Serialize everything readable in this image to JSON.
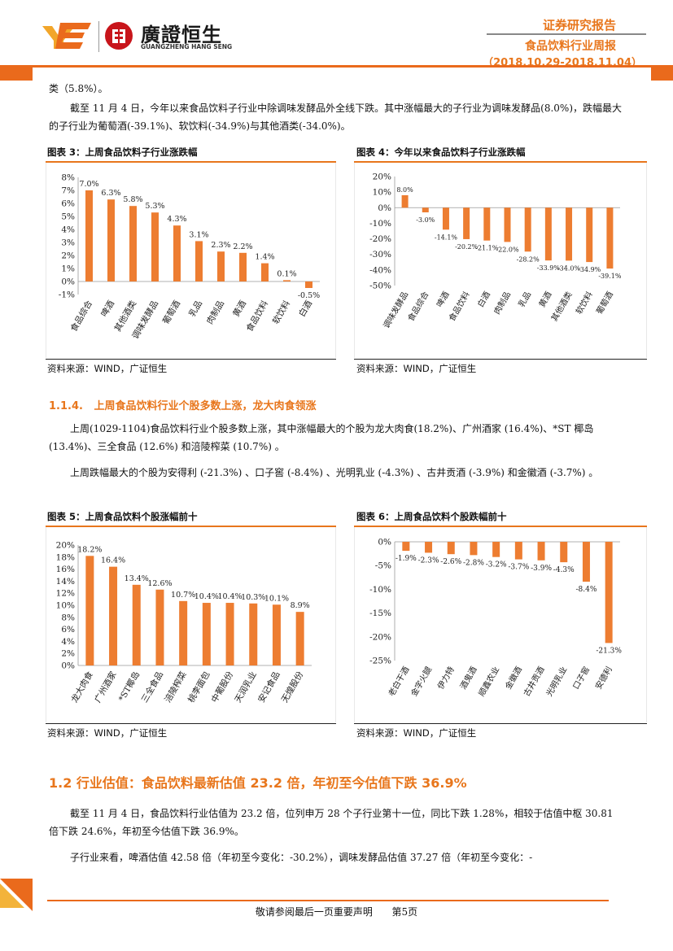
{
  "header": {
    "brand_cn": "廣證恒生",
    "brand_en": "GUANGZHENG HANG SENG",
    "report_type": "证券研究报告",
    "report_name": "食品饮料行业周报",
    "date_range": "（2018.10.29-2018.11.04）"
  },
  "body": {
    "p0": "类（5.8%）。",
    "p1": "截至 11 月 4 日，今年以来食品饮料子行业中除调味发酵品外全线下跌。其中涨幅最大的子行业为调味发酵品(8.0%)，跌幅最大的子行业为葡萄酒(-39.1%)、软饮料(-34.9%)与其他酒类(-34.0%)。",
    "section_114": "1.1.4.   上周食品饮料行业个股多数上涨，龙大肉食领涨",
    "p2": "上周(1029-1104)食品饮料行业个股多数上涨，其中涨幅最大的个股为龙大肉食(18.2%)、广州酒家 (16.4%)、*ST 椰岛(13.4%)、三全食品 (12.6%) 和涪陵榨菜 (10.7%) 。",
    "p3": "上周跌幅最大的个股为安得利 (-21.3%) 、口子窖 (-8.4%) 、光明乳业 (-4.3%) 、古井贡酒 (-3.9%) 和金徽酒 (-3.7%) 。",
    "section_12": "1.2 行业估值：食品饮料最新估值 23.2 倍，年初至今估值下跌 36.9%",
    "p4": "截至 11 月 4 日，食品饮料行业估值为 23.2 倍，位列申万 28 个子行业第十一位，同比下跌 1.28%，相较于估值中枢 30.81 倍下跌 24.6%，年初至今估值下跌 36.9%。",
    "p5": "子行业来看，啤酒估值 42.58 倍（年初至今变化：-30.2%），调味发酵品估值 37.27 倍（年初至今变化：-"
  },
  "figures": {
    "fig3_title": "图表 3：上周食品饮料子行业涨跌幅",
    "fig4_title": "图表 4：今年以来食品饮料子行业涨跌幅",
    "fig5_title": "图表 5：上周食品饮料个股涨幅前十",
    "fig6_title": "图表 6：上周食品饮料个股跌幅前十",
    "source": "资料来源：WIND，广证恒生"
  },
  "footer": {
    "text": "敬请参阅最后一页重要声明",
    "page": "第5页"
  },
  "colors": {
    "accent": "#e8761c",
    "bar": "#ed7d31"
  },
  "chart_data": [
    {
      "type": "bar",
      "categories": [
        "食品综合",
        "啤酒",
        "其他酒类",
        "调味发酵品",
        "葡萄酒",
        "乳品",
        "肉制品",
        "黄酒",
        "食品饮料",
        "软饮料",
        "白酒"
      ],
      "values": [
        7.0,
        6.3,
        5.8,
        5.3,
        4.3,
        3.1,
        2.3,
        2.2,
        1.4,
        0.1,
        -0.5
      ],
      "labels": [
        "7.0%",
        "6.3%",
        "5.8%",
        "5.3%",
        "4.3%",
        "3.1%",
        "2.3%",
        "2.2%",
        "1.4%",
        "0.1%",
        "-0.5%"
      ],
      "yticks": [
        "8%",
        "7%",
        "6%",
        "5%",
        "4%",
        "3%",
        "2%",
        "1%",
        "0%",
        "-1%"
      ],
      "ylim": [
        -1,
        8
      ]
    },
    {
      "type": "bar",
      "categories": [
        "调味发酵品",
        "食品综合",
        "啤酒",
        "食品饮料",
        "白酒",
        "肉制品",
        "乳品",
        "黄酒",
        "其他酒类",
        "软饮料",
        "葡萄酒"
      ],
      "values": [
        8.0,
        -3.0,
        -14.1,
        -20.2,
        -21.1,
        -22.0,
        -28.2,
        -33.9,
        -34.0,
        -34.9,
        -39.1
      ],
      "labels": [
        "8.0%",
        "-3.0%",
        "-14.1%",
        "-20.2%",
        "-21.1%",
        "-22.0%",
        "-28.2%",
        "-33.9%",
        "-34.0%",
        "-34.9%",
        "-39.1%"
      ],
      "yticks": [
        "20%",
        "10%",
        "0%",
        "-10%",
        "-20%",
        "-30%",
        "-40%",
        "-50%"
      ],
      "ylim": [
        -50,
        20
      ]
    },
    {
      "type": "bar",
      "categories": [
        "龙大肉食",
        "广州酒家",
        "*ST椰岛",
        "三全食品",
        "涪陵榨菜",
        "桃李面包",
        "中葡股份",
        "天润乳业",
        "安记食品",
        "无煌股份"
      ],
      "values": [
        18.2,
        16.4,
        13.4,
        12.6,
        10.7,
        10.4,
        10.4,
        10.3,
        10.1,
        8.9
      ],
      "labels": [
        "18.2%",
        "16.4%",
        "13.4%",
        "12.6%",
        "10.7%",
        "10.4%",
        "10.4%",
        "10.3%",
        "10.1%",
        "8.9%"
      ],
      "yticks": [
        "20%",
        "18%",
        "16%",
        "14%",
        "12%",
        "10%",
        "8%",
        "6%",
        "4%",
        "2%",
        "0%"
      ],
      "ylim": [
        0,
        20
      ]
    },
    {
      "type": "bar",
      "categories": [
        "老白干酒",
        "金字火腿",
        "伊力特",
        "酒鬼酒",
        "顺鑫农业",
        "金徽酒",
        "古井贡酒",
        "光明乳业",
        "口子窖",
        "安德利"
      ],
      "values": [
        -1.9,
        -2.3,
        -2.6,
        -2.8,
        -3.2,
        -3.7,
        -3.9,
        -4.3,
        -8.4,
        -21.3
      ],
      "labels": [
        "-1.9%",
        "-2.3%",
        "-2.6%",
        "-2.8%",
        "-3.2%",
        "-3.7%",
        "-3.9%",
        "-4.3%",
        "-8.4%",
        "-21.3%"
      ],
      "yticks": [
        "0%",
        "-5%",
        "-10%",
        "-15%",
        "-20%",
        "-25%"
      ],
      "ylim": [
        -25,
        0
      ]
    }
  ]
}
